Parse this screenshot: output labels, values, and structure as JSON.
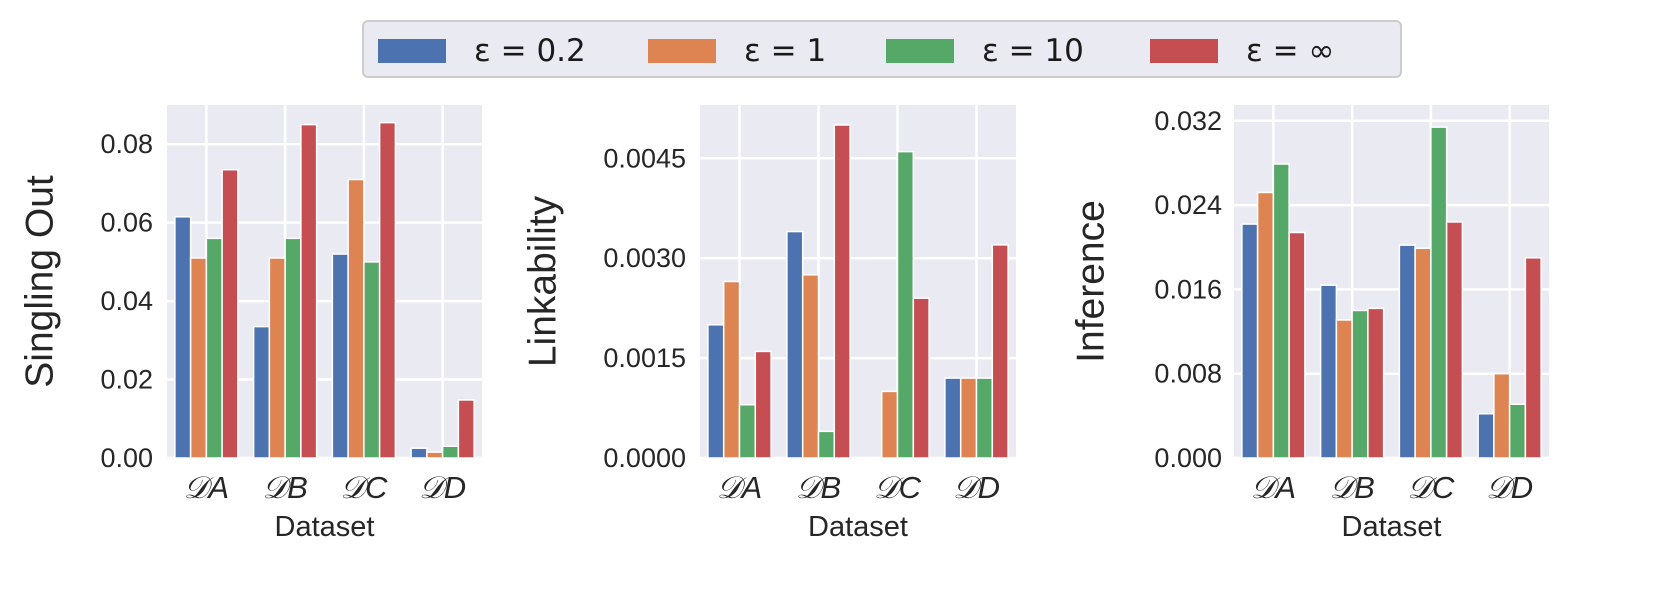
{
  "legend": [
    {
      "label": "ε = 0.2",
      "color": "#4c72b0"
    },
    {
      "label": "ε = 1",
      "color": "#dd8452"
    },
    {
      "label": "ε = 10",
      "color": "#55a868"
    },
    {
      "label": "ε = ∞",
      "color": "#c44e52"
    }
  ],
  "chart_data": [
    {
      "type": "bar",
      "ylabel": "Singling Out",
      "xlabel": "Dataset",
      "categories": [
        "𝒟A",
        "𝒟B",
        "𝒟C",
        "𝒟D"
      ],
      "ylim": [
        0,
        0.09
      ],
      "yticks": [
        "0.00",
        "0.02",
        "0.04",
        "0.06",
        "0.08"
      ],
      "ytick_values": [
        0,
        0.02,
        0.04,
        0.06,
        0.08
      ],
      "grid": true,
      "series": [
        {
          "name": "ε = 0.2",
          "values": [
            0.0615,
            0.0335,
            0.052,
            0.0025
          ]
        },
        {
          "name": "ε = 1",
          "values": [
            0.051,
            0.051,
            0.071,
            0.0015
          ]
        },
        {
          "name": "ε = 10",
          "values": [
            0.056,
            0.056,
            0.05,
            0.003
          ]
        },
        {
          "name": "ε = ∞",
          "values": [
            0.0735,
            0.085,
            0.0855,
            0.0148
          ]
        }
      ]
    },
    {
      "type": "bar",
      "ylabel": "Linkability",
      "xlabel": "Dataset",
      "categories": [
        "𝒟A",
        "𝒟B",
        "𝒟C",
        "𝒟D"
      ],
      "ylim": [
        0,
        0.0053
      ],
      "yticks": [
        "0.0000",
        "0.0015",
        "0.0030",
        "0.0045"
      ],
      "ytick_values": [
        0,
        0.0015,
        0.003,
        0.0045
      ],
      "grid": true,
      "series": [
        {
          "name": "ε = 0.2",
          "values": [
            0.002,
            0.0034,
            0.0,
            0.0012
          ]
        },
        {
          "name": "ε = 1",
          "values": [
            0.00265,
            0.00275,
            0.001,
            0.0012
          ]
        },
        {
          "name": "ε = 10",
          "values": [
            0.0008,
            0.0004,
            0.0046,
            0.0012
          ]
        },
        {
          "name": "ε = ∞",
          "values": [
            0.0016,
            0.005,
            0.0024,
            0.0032
          ]
        }
      ]
    },
    {
      "type": "bar",
      "ylabel": "Inference",
      "xlabel": "Dataset",
      "categories": [
        "𝒟A",
        "𝒟B",
        "𝒟C",
        "𝒟D"
      ],
      "ylim": [
        0,
        0.0335
      ],
      "yticks": [
        "0.000",
        "0.008",
        "0.016",
        "0.024",
        "0.032"
      ],
      "ytick_values": [
        0,
        0.008,
        0.016,
        0.024,
        0.032
      ],
      "grid": true,
      "series": [
        {
          "name": "ε = 0.2",
          "values": [
            0.0222,
            0.0164,
            0.0202,
            0.0042
          ]
        },
        {
          "name": "ε = 1",
          "values": [
            0.0252,
            0.0131,
            0.0199,
            0.008
          ]
        },
        {
          "name": "ε = 10",
          "values": [
            0.0279,
            0.014,
            0.0314,
            0.0051
          ]
        },
        {
          "name": "ε = ∞",
          "values": [
            0.0214,
            0.0142,
            0.0224,
            0.019
          ]
        }
      ]
    }
  ]
}
